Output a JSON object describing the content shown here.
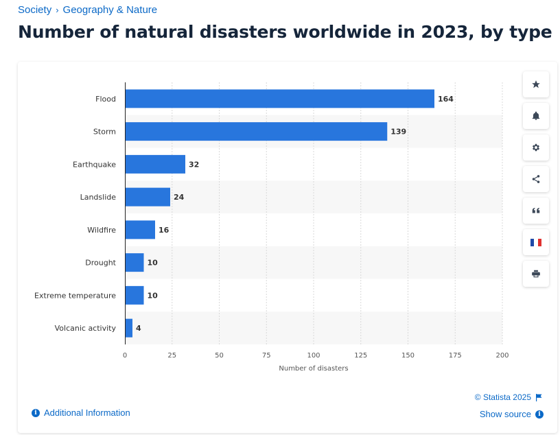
{
  "breadcrumb": {
    "items": [
      "Society",
      "Geography & Nature"
    ],
    "separator": "›"
  },
  "page": {
    "title": "Number of natural disasters worldwide in 2023, by type"
  },
  "toolbar": {
    "icons": [
      "star-icon",
      "bell-icon",
      "gear-icon",
      "share-icon",
      "quote-icon",
      "flag-france-icon",
      "print-icon"
    ]
  },
  "footer": {
    "additional_info": "Additional Information",
    "info_glyph": "i",
    "copyright": "© Statista 2025",
    "show_source": "Show source"
  },
  "colors": {
    "bar": "#2876dd",
    "link": "#0b69c7",
    "band": "#f7f7f7",
    "grid": "#d8d8d8"
  },
  "chart_data": {
    "type": "bar",
    "orientation": "horizontal",
    "categories": [
      "Flood",
      "Storm",
      "Earthquake",
      "Landslide",
      "Wildfire",
      "Drought",
      "Extreme temperature",
      "Volcanic activity"
    ],
    "values": [
      164,
      139,
      32,
      24,
      16,
      10,
      10,
      4
    ],
    "xlabel": "Number of disasters",
    "xlim": [
      0,
      200
    ],
    "xticks": [
      0,
      25,
      50,
      75,
      100,
      125,
      150,
      175,
      200
    ],
    "grid": true,
    "data_labels": true
  }
}
